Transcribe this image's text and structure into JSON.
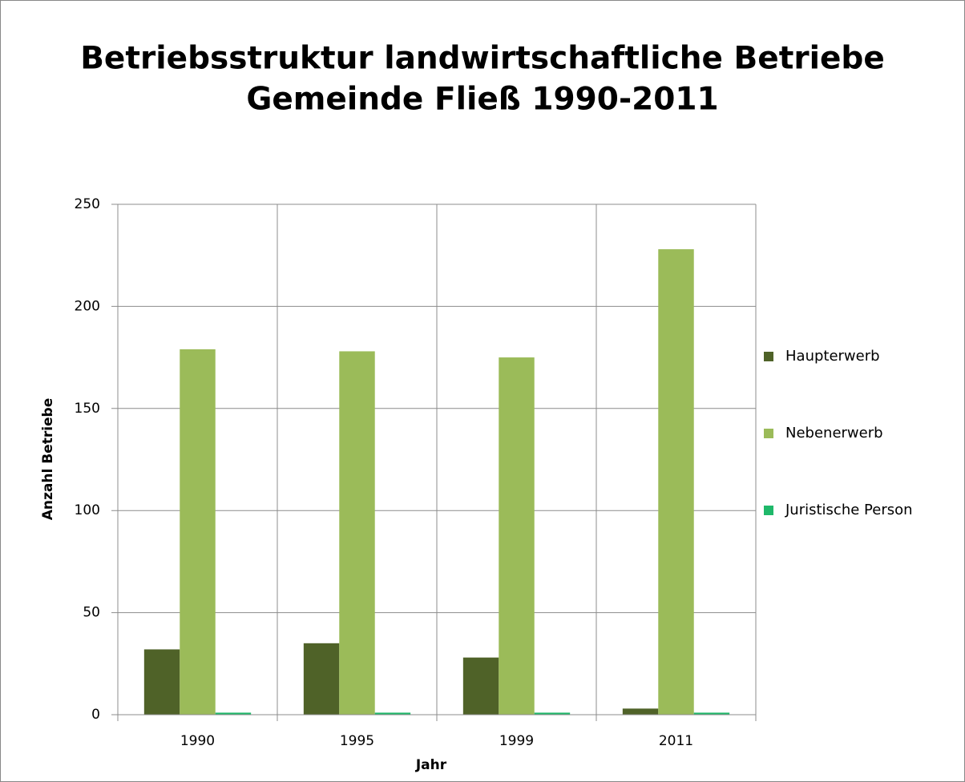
{
  "chart_data": {
    "type": "bar",
    "title": [
      "Betriebsstruktur landwirtschaftliche Betriebe",
      "Gemeinde Fließ 1990-2011"
    ],
    "x_label": "Jahr",
    "y_label": "Anzahl Betriebe",
    "categories": [
      "1990",
      "1995",
      "1999",
      "2011"
    ],
    "series": [
      {
        "name": "Haupterwerb",
        "color": "#4f6228",
        "values": [
          32,
          35,
          28,
          3
        ]
      },
      {
        "name": "Nebenerwerb",
        "color": "#9bbb59",
        "values": [
          179,
          178,
          175,
          228
        ]
      },
      {
        "name": "Juristische Person",
        "color": "#1fb86a",
        "values": [
          1,
          1,
          1,
          1
        ]
      }
    ],
    "ylim": [
      0,
      250
    ],
    "yticks": [
      0,
      50,
      100,
      150,
      200,
      250
    ],
    "grid": true,
    "legend": "right"
  }
}
